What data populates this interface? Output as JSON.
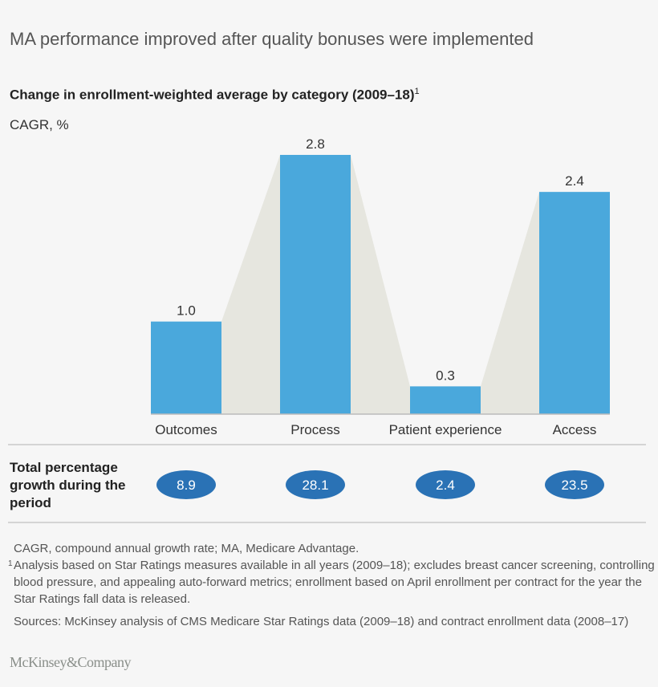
{
  "title": "MA performance improved after quality bonuses were implemented",
  "subtitle": "Change in enrollment-weighted average by category (2009–18)",
  "subtitle_footnote_marker": "1",
  "chart_data": {
    "type": "bar",
    "title": "Change in enrollment-weighted average by category (2009–18)",
    "ylabel": "CAGR, %",
    "categories": [
      "Outcomes",
      "Process",
      "Patient experience",
      "Access"
    ],
    "values": [
      1.0,
      2.8,
      0.3,
      2.4
    ],
    "value_labels": [
      "1.0",
      "2.8",
      "0.3",
      "2.4"
    ],
    "ylim": [
      0,
      2.8
    ],
    "grid": false,
    "colors": {
      "bar": "#4aa8dc",
      "connector": "#e6e6df",
      "oval": "#2a72b5"
    }
  },
  "total_row": {
    "label": "Total percentage growth during the period",
    "values": [
      "8.9",
      "28.1",
      "2.4",
      "23.5"
    ]
  },
  "footnotes": {
    "abbrev": "CAGR, compound annual growth rate; MA, Medicare Advantage.",
    "note1_marker": "1",
    "note1": "Analysis based on Star Ratings measures available in all years (2009–18); excludes breast cancer screening, controlling blood pressure, and appealing auto-forward metrics; enrollment based on April enrollment per contract for the year the Star Ratings fall data is released.",
    "sources": "Sources: McKinsey analysis of CMS Medicare Star Ratings data (2009–18) and contract enrollment data (2008–17)"
  },
  "logo": "McKinsey&Company"
}
